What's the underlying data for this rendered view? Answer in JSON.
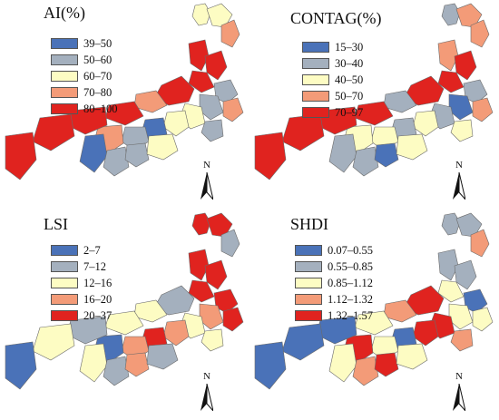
{
  "panels": [
    {
      "id": "ai",
      "title": "AI(%)",
      "legend": [
        {
          "label": "39–50",
          "color": "#4a72b8"
        },
        {
          "label": "50–60",
          "color": "#a4b0be"
        },
        {
          "label": "60–70",
          "color": "#fdfcc3"
        },
        {
          "label": "70–80",
          "color": "#f39b78"
        },
        {
          "label": "80–100",
          "color": "#e0231f"
        }
      ],
      "north_label": "N",
      "region_classes": [
        "60–70",
        "60–70",
        "70–80",
        "80–100",
        "80–100",
        "80–100",
        "80–100",
        "70–80",
        "50–60",
        "50–60",
        "60–70",
        "70–80",
        "50–60",
        "60–70",
        "80–100",
        "39–50",
        "50–60",
        "70–80",
        "80–100",
        "80–100",
        "39–50",
        "50–60",
        "50–60",
        "60–70",
        "80–100"
      ]
    },
    {
      "id": "contag",
      "title": "CONTAG(%)",
      "legend": [
        {
          "label": "15–30",
          "color": "#4a72b8"
        },
        {
          "label": "30–40",
          "color": "#a4b0be"
        },
        {
          "label": "40–50",
          "color": "#fdfcc3"
        },
        {
          "label": "50–70",
          "color": "#f39b78"
        },
        {
          "label": "70–97",
          "color": "#e0231f"
        }
      ],
      "north_label": "N",
      "region_classes": [
        "30–40",
        "50–70",
        "50–70",
        "50–70",
        "70–97",
        "70–97",
        "70–97",
        "30–40",
        "30–40",
        "15–30",
        "30–40",
        "50–70",
        "40–50",
        "40–50",
        "70–97",
        "30–40",
        "40–50",
        "40–50",
        "70–97",
        "70–97",
        "30–40",
        "30–40",
        "15–30",
        "40–50",
        "70–97"
      ]
    },
    {
      "id": "lsi",
      "title": "LSI",
      "legend": [
        {
          "label": "2–7",
          "color": "#4a72b8"
        },
        {
          "label": "7–12",
          "color": "#a4b0be"
        },
        {
          "label": "12–16",
          "color": "#fdfcc3"
        },
        {
          "label": "16–20",
          "color": "#f39b78"
        },
        {
          "label": "20–37",
          "color": "#e0231f"
        }
      ],
      "north_label": "N",
      "region_classes": [
        "20–37",
        "20–37",
        "7–12",
        "20–37",
        "20–37",
        "20–37",
        "7–12",
        "12–16",
        "20–37",
        "16–20",
        "12–16",
        "20–37",
        "12–16",
        "16–20",
        "12–16",
        "20–37",
        "16–20",
        "2–7",
        "7–12",
        "12–16",
        "12–16",
        "7–12",
        "16–20",
        "7–12",
        "2–7"
      ]
    },
    {
      "id": "shdi",
      "title": "SHDI",
      "legend": [
        {
          "label": "0.07–0.55",
          "color": "#4a72b8"
        },
        {
          "label": "0.55–0.85",
          "color": "#a4b0be"
        },
        {
          "label": "0.85–1.12",
          "color": "#fdfcc3"
        },
        {
          "label": "1.12–1.32",
          "color": "#f39b78"
        },
        {
          "label": "1.32–1.57",
          "color": "#e0231f"
        }
      ],
      "north_label": "N",
      "region_classes": [
        "0.55–0.85",
        "0.55–0.85",
        "1.12–1.32",
        "0.55–0.85",
        "0.55–0.85",
        "0.85–1.12",
        "1.32–1.57",
        "1.12–1.32",
        "0.07–0.55",
        "0.85–1.12",
        "1.32–1.57",
        "0.85–1.12",
        "1.12–1.32",
        "1.32–1.57",
        "0.85–1.12",
        "0.07–0.55",
        "0.85–1.12",
        "1.32–1.57",
        "0.07–0.55",
        "0.07–0.55",
        "0.85–1.12",
        "1.12–1.32",
        "1.32–1.57",
        "0.85–1.12",
        "0.07–0.55"
      ]
    }
  ]
}
